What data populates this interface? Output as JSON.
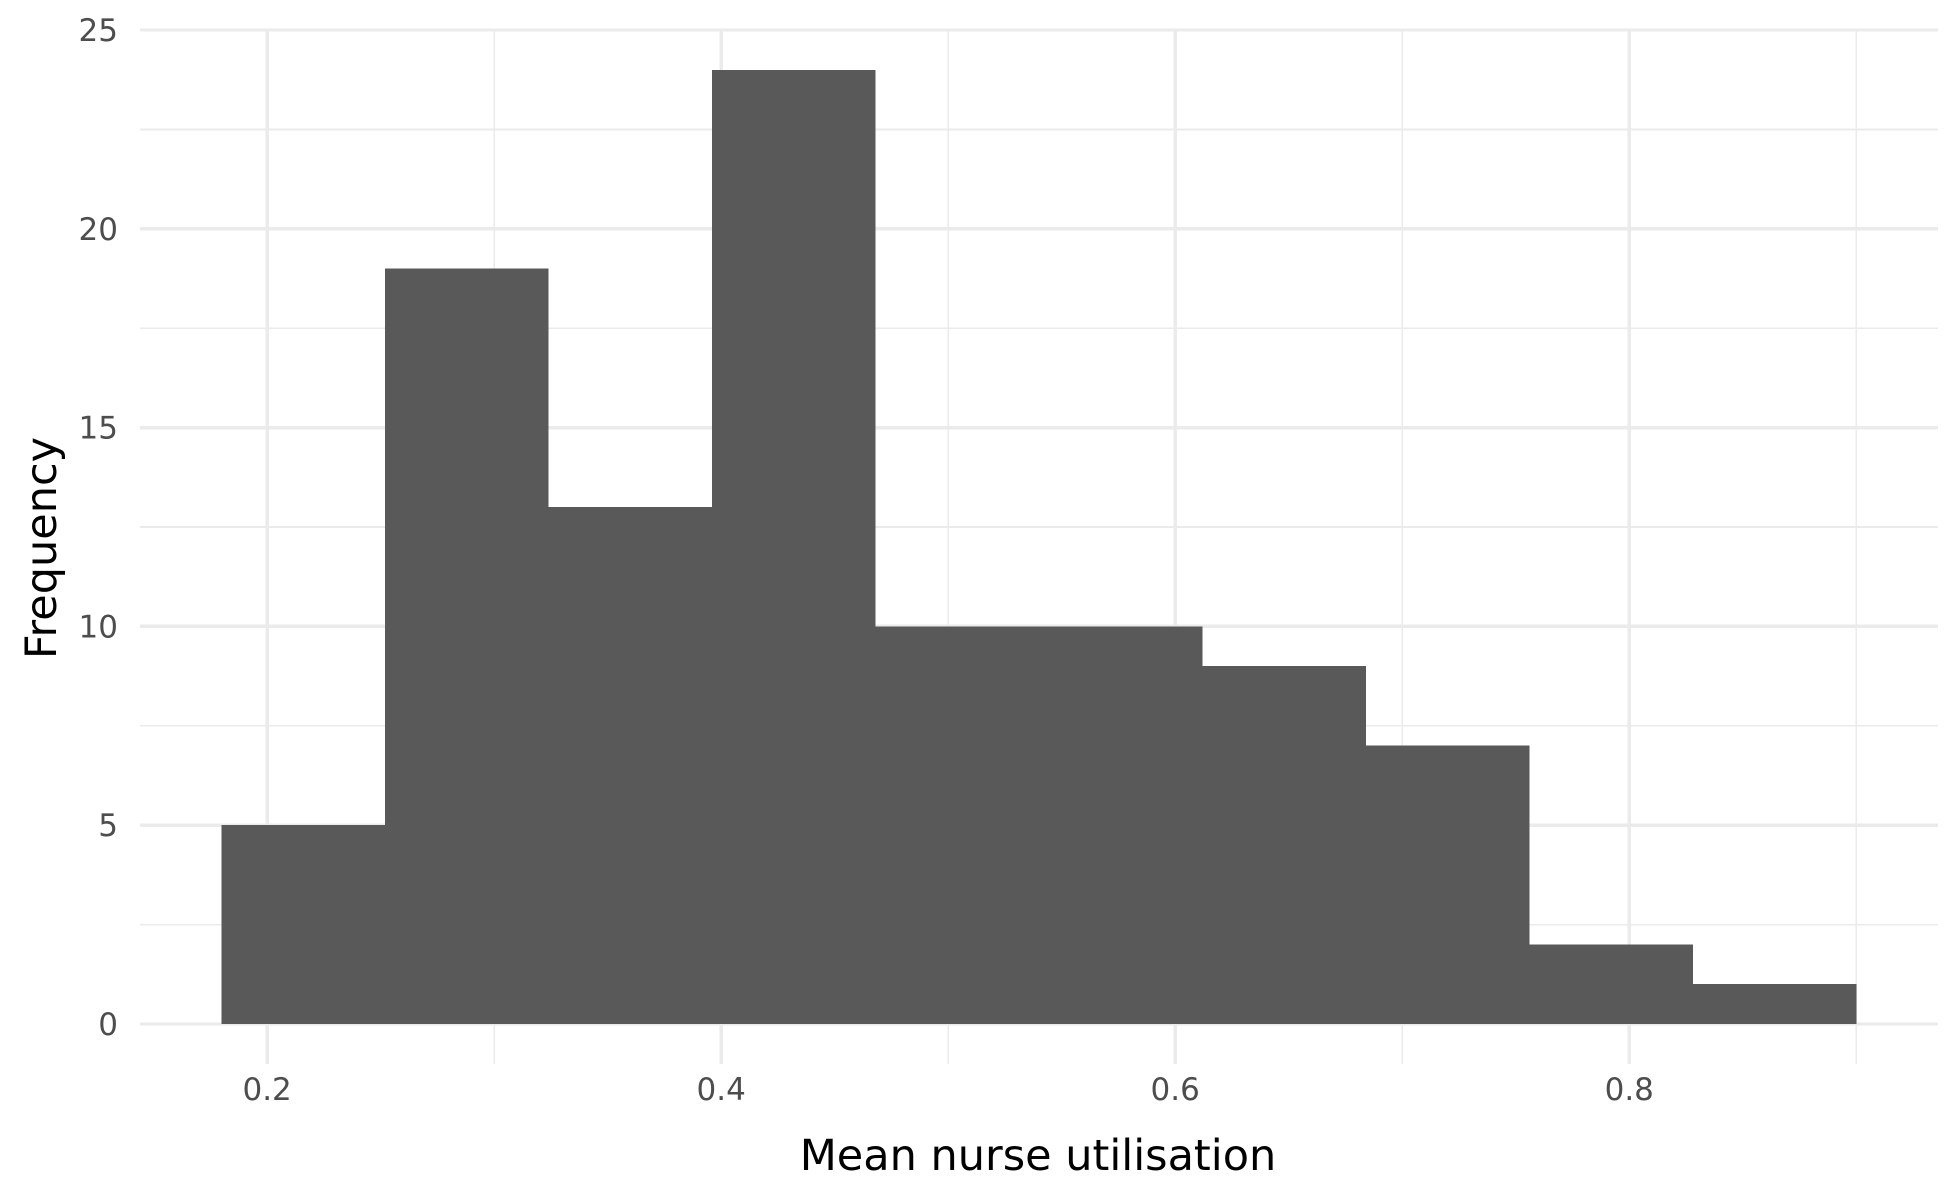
{
  "chart_data": {
    "type": "bar",
    "title": "",
    "xlabel": "Mean nurse utilisation",
    "ylabel": "Frequency",
    "grid": true,
    "legend": "none",
    "xlim": [
      0.144,
      0.936
    ],
    "ylim": [
      0,
      25
    ],
    "x_ticks": [
      0.2,
      0.4,
      0.6,
      0.8
    ],
    "x_tick_labels": [
      "0.2",
      "0.4",
      "0.6",
      "0.8"
    ],
    "x_minor_ticks": [
      0.3,
      0.5,
      0.7,
      0.9
    ],
    "y_ticks": [
      0,
      5,
      10,
      15,
      20,
      25
    ],
    "y_tick_labels": [
      "0",
      "5",
      "10",
      "15",
      "20",
      "25"
    ],
    "y_minor_ticks": [
      2.5,
      7.5,
      12.5,
      17.5,
      22.5
    ],
    "bins": [
      {
        "start": 0.18,
        "end": 0.252,
        "count": 5
      },
      {
        "start": 0.252,
        "end": 0.324,
        "count": 19
      },
      {
        "start": 0.324,
        "end": 0.396,
        "count": 13
      },
      {
        "start": 0.396,
        "end": 0.468,
        "count": 24
      },
      {
        "start": 0.468,
        "end": 0.54,
        "count": 10
      },
      {
        "start": 0.54,
        "end": 0.612,
        "count": 10
      },
      {
        "start": 0.612,
        "end": 0.684,
        "count": 9
      },
      {
        "start": 0.684,
        "end": 0.756,
        "count": 7
      },
      {
        "start": 0.756,
        "end": 0.828,
        "count": 2
      },
      {
        "start": 0.828,
        "end": 0.9,
        "count": 1
      }
    ],
    "colors": {
      "bar": "#595959",
      "grid": "#ebebeb",
      "tick_label": "#4d4d4d",
      "axis_title": "#000000",
      "background": "#ffffff"
    }
  }
}
